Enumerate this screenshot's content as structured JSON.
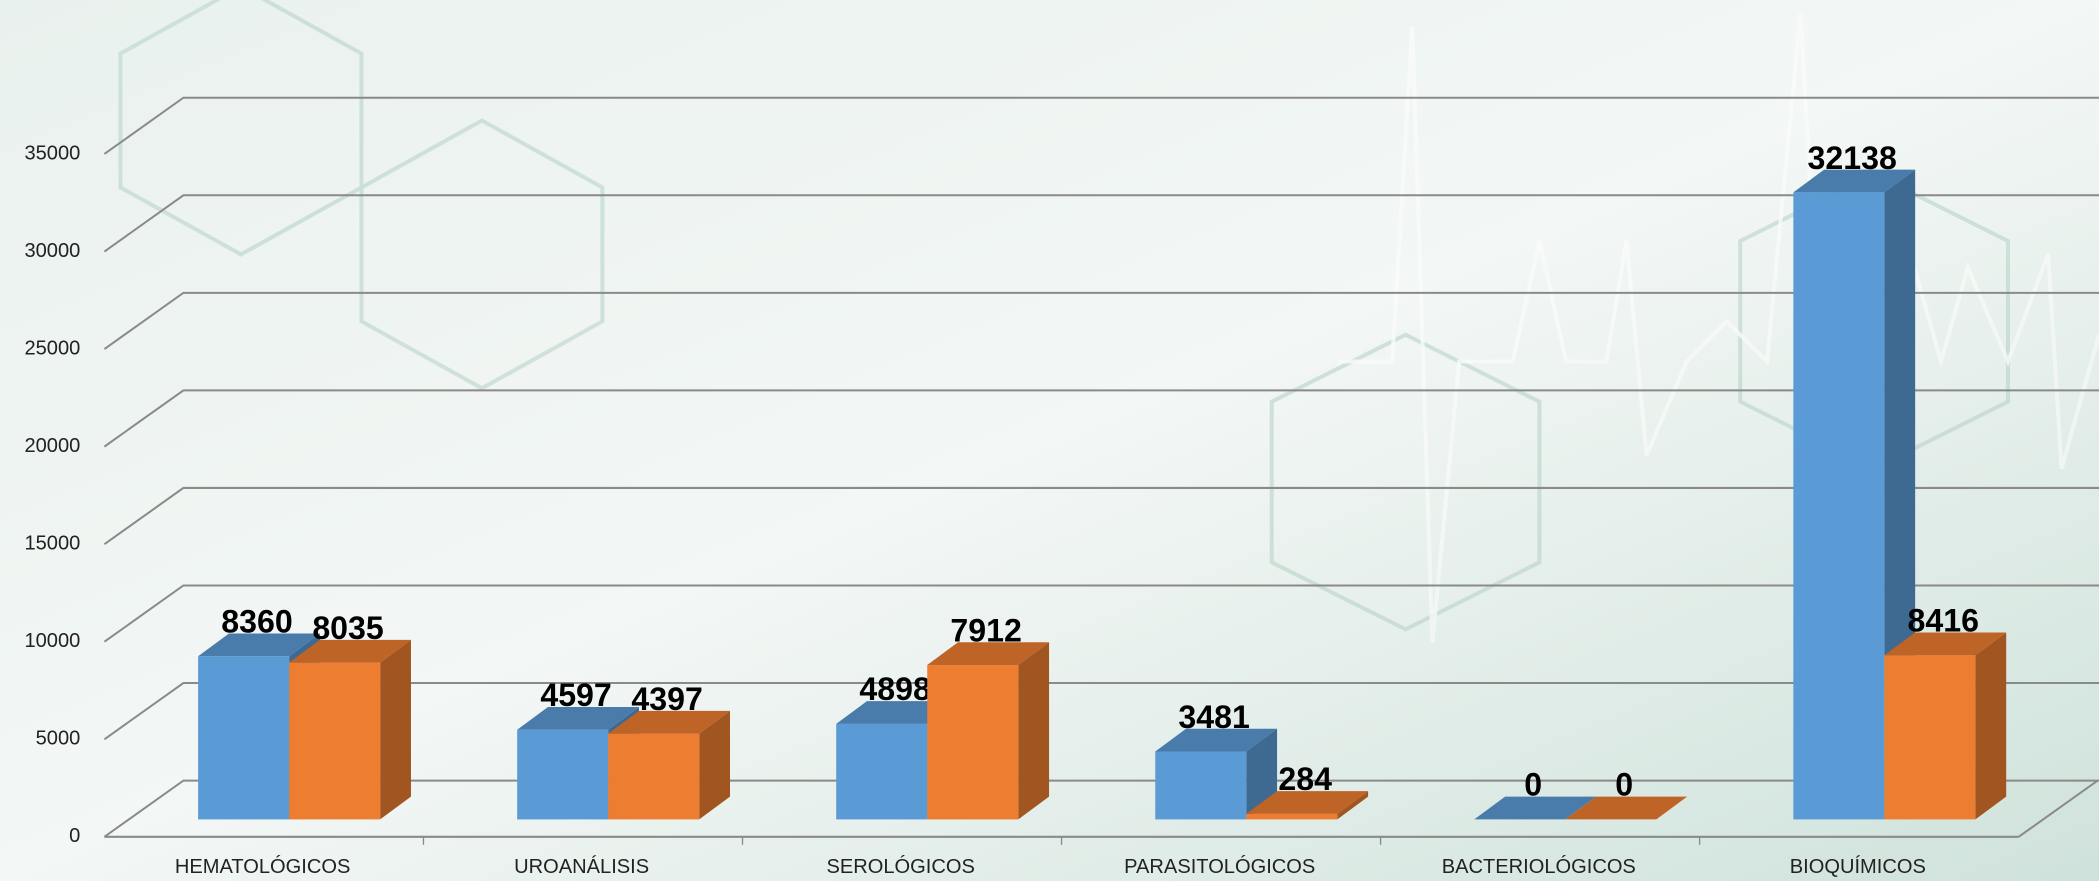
{
  "chart_data": {
    "type": "bar3d",
    "categories": [
      "HEMATOLÓGICOS",
      "UROANÁLISIS",
      "SEROLÓGICOS",
      "PARASITOLÓGICOS",
      "BACTERIOLÓGICOS",
      "BIOQUÍMICOS"
    ],
    "series": [
      {
        "color": "#5b9bd5",
        "values": [
          8360,
          4597,
          4898,
          3481,
          0,
          32138
        ]
      },
      {
        "color": "#ed7d31",
        "values": [
          8035,
          4397,
          7912,
          284,
          0,
          8416
        ]
      }
    ],
    "ylim": [
      0,
      35000
    ],
    "yticks": [
      0,
      5000,
      10000,
      15000,
      20000,
      25000,
      30000,
      35000
    ],
    "grid": true
  }
}
